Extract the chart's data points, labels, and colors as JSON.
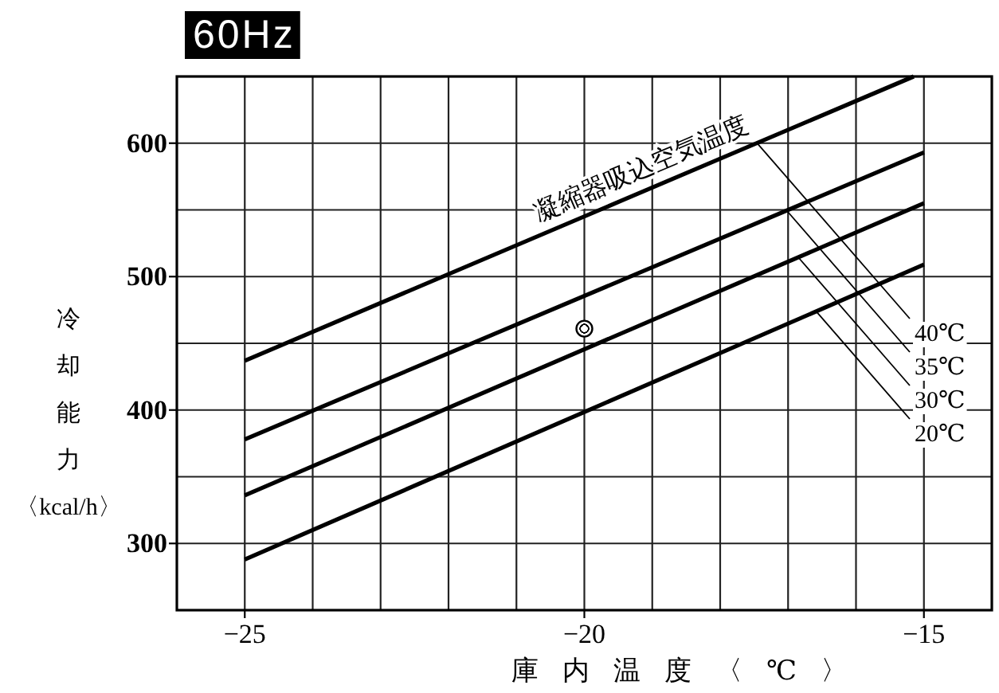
{
  "chart_data": {
    "type": "line",
    "title": "60Hz",
    "xlabel": "庫内温度〈℃〉",
    "ylabel": "冷却能力〈kcal/h〉",
    "legend_title": "凝縮器吸込空気温度",
    "x": [
      -25,
      -15
    ],
    "series": [
      {
        "name": "40℃",
        "color": "#000000",
        "x": [
          -25,
          -15.15
        ],
        "values": [
          437,
          650
        ]
      },
      {
        "name": "35℃",
        "color": "#000000",
        "values": [
          378,
          593
        ]
      },
      {
        "name": "30℃",
        "color": "#000000",
        "values": [
          336,
          555
        ]
      },
      {
        "name": "20℃",
        "color": "#000000",
        "values": [
          288,
          509
        ]
      },
      {
        "type": "scatter",
        "color": "#000000",
        "marker": "circle",
        "x": [
          -20
        ],
        "values": [
          461
        ]
      }
    ],
    "xlim": [
      -26,
      -14
    ],
    "xticks": [
      {
        "value": -25,
        "label": "−25"
      },
      {
        "value": -24,
        "label": null
      },
      {
        "value": -23,
        "label": null
      },
      {
        "value": -22,
        "label": null
      },
      {
        "value": -21,
        "label": null
      },
      {
        "value": -20,
        "label": "−20"
      },
      {
        "value": -19,
        "label": null
      },
      {
        "value": -18,
        "label": null
      },
      {
        "value": -17,
        "label": null
      },
      {
        "value": -16,
        "label": null
      },
      {
        "value": -15,
        "label": "−15"
      }
    ],
    "ylim": [
      250,
      650
    ],
    "yticks": [
      300,
      {
        "value": 350,
        "label": null
      },
      400,
      {
        "value": 450,
        "label": null
      },
      500,
      {
        "value": 550,
        "label": null
      },
      600
    ],
    "grid": true
  }
}
